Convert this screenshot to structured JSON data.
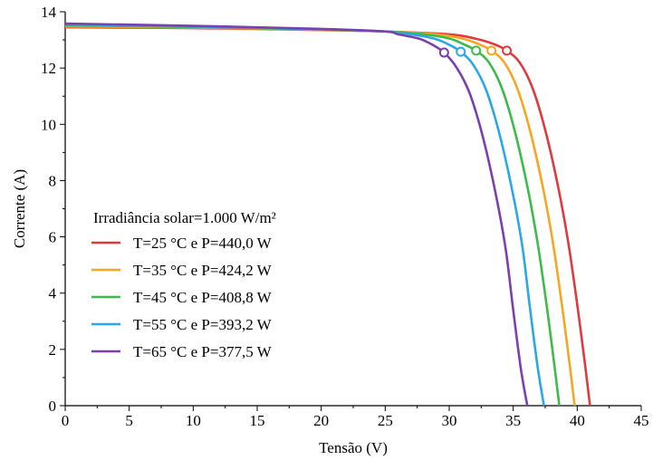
{
  "chart_data": {
    "type": "line",
    "xlabel": "Tensão (V)",
    "ylabel": "Corrente (A)",
    "xlim": [
      0,
      45
    ],
    "ylim": [
      0,
      14
    ],
    "xticks": [
      0,
      5,
      10,
      15,
      20,
      25,
      30,
      35,
      40,
      45
    ],
    "yticks": [
      0,
      2,
      4,
      6,
      8,
      10,
      12,
      14
    ],
    "grid": false,
    "legend_position": "left",
    "legend_title": "Irradiância solar=1.000 W/m²",
    "series": [
      {
        "name": "T=25 °C e P=440,0 W",
        "color": "#e0393e",
        "x": [
          0,
          10,
          20,
          25,
          30,
          32,
          33.5,
          34.5,
          35.5,
          36.5,
          37.5,
          38.5,
          39.3,
          40.0,
          40.6,
          41.0
        ],
        "y": [
          13.45,
          13.42,
          13.35,
          13.3,
          13.2,
          13.05,
          12.85,
          12.62,
          12.2,
          11.3,
          9.8,
          7.8,
          5.8,
          3.6,
          1.5,
          0
        ],
        "mpp": [
          34.5,
          12.62
        ]
      },
      {
        "name": "T=35 °C e P=424,2 W",
        "color": "#f5a623",
        "x": [
          0,
          10,
          20,
          25,
          29,
          31,
          32.3,
          33.3,
          34.3,
          35.3,
          36.3,
          37.3,
          38.1,
          38.8,
          39.4,
          39.8
        ],
        "y": [
          13.48,
          13.44,
          13.36,
          13.3,
          13.2,
          13.05,
          12.85,
          12.62,
          12.2,
          11.3,
          9.8,
          7.8,
          5.8,
          3.6,
          1.5,
          0
        ],
        "mpp": [
          33.3,
          12.62
        ]
      },
      {
        "name": "T=45 °C e P=408,8 W",
        "color": "#3dbb4a",
        "x": [
          0,
          10,
          20,
          25,
          28,
          30,
          31.1,
          32.1,
          33.1,
          34.1,
          35.1,
          36.1,
          36.9,
          37.6,
          38.2,
          38.6
        ],
        "y": [
          13.52,
          13.46,
          13.37,
          13.3,
          13.2,
          13.05,
          12.85,
          12.62,
          12.2,
          11.3,
          9.8,
          7.8,
          5.8,
          3.6,
          1.5,
          0
        ],
        "mpp": [
          32.1,
          12.62
        ]
      },
      {
        "name": "T=55 °C e P=393,2 W",
        "color": "#29a8e6",
        "x": [
          0,
          10,
          20,
          25,
          27,
          28.8,
          29.9,
          30.9,
          31.9,
          32.9,
          33.9,
          34.9,
          35.7,
          36.3,
          36.9,
          37.4
        ],
        "y": [
          13.55,
          13.48,
          13.38,
          13.3,
          13.2,
          13.05,
          12.85,
          12.58,
          12.1,
          11.2,
          9.7,
          7.7,
          5.7,
          3.5,
          1.4,
          0
        ],
        "mpp": [
          30.9,
          12.58
        ]
      },
      {
        "name": "T=65 °C e P=377,5 W",
        "color": "#7b3fb0",
        "x": [
          0,
          10,
          20,
          25,
          26,
          27.6,
          28.6,
          29.6,
          30.6,
          31.6,
          32.6,
          33.6,
          34.4,
          35.0,
          35.6,
          36.1
        ],
        "y": [
          13.58,
          13.5,
          13.39,
          13.3,
          13.2,
          13.05,
          12.85,
          12.55,
          12.0,
          11.1,
          9.6,
          7.6,
          5.6,
          3.4,
          1.3,
          0
        ],
        "mpp": [
          29.6,
          12.55
        ]
      }
    ]
  }
}
